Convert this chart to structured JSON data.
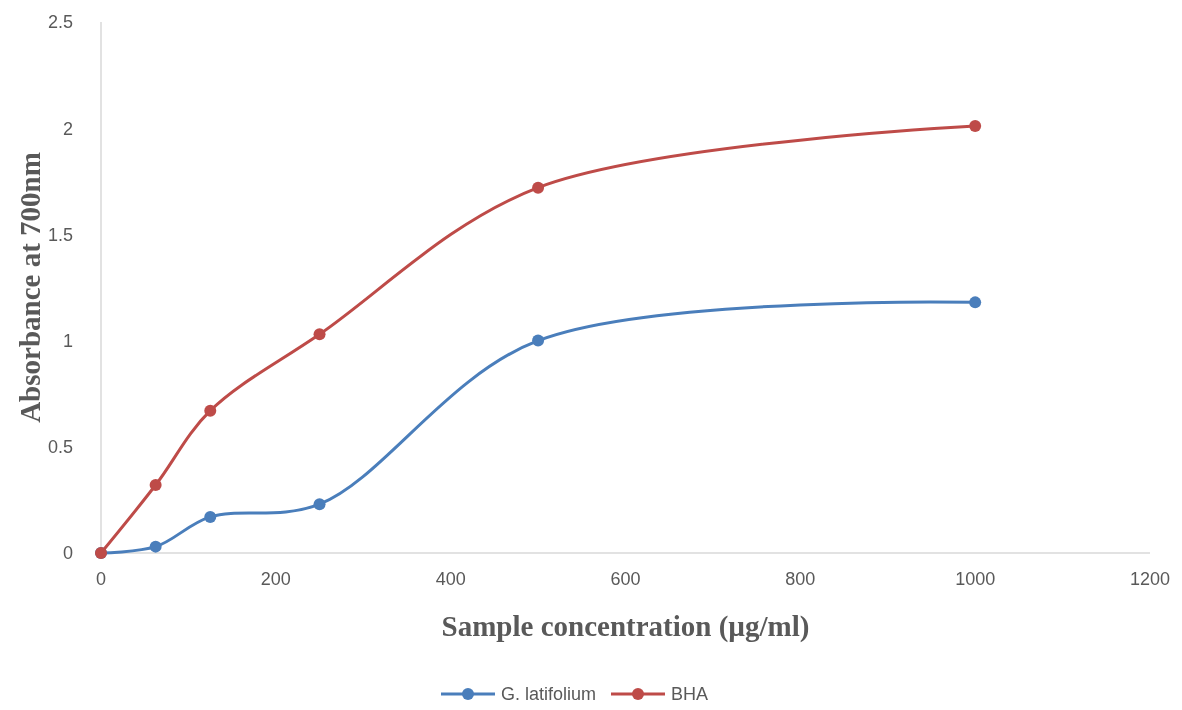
{
  "chart_data": {
    "type": "line",
    "xlabel": "Sample concentration (µg/ml)",
    "ylabel": "Absorbance at 700nm",
    "x": [
      0,
      62.5,
      125,
      250,
      500,
      1000
    ],
    "series": [
      {
        "name": "G. latifolium",
        "color": "#4a7ebb",
        "values": [
          0,
          0.03,
          0.17,
          0.23,
          1.0,
          1.18
        ]
      },
      {
        "name": "BHA",
        "color": "#be4b48",
        "values": [
          0,
          0.32,
          0.67,
          1.03,
          1.72,
          2.01
        ]
      }
    ],
    "xlim": [
      0,
      1200
    ],
    "xticks": [
      0,
      200,
      400,
      600,
      800,
      1000,
      1200
    ],
    "ylim": [
      0,
      2.5
    ],
    "yticks": [
      0,
      0.5,
      1,
      1.5,
      2,
      2.5
    ],
    "grid": false,
    "legend": "bottom",
    "marker": "circle",
    "line_style": "solid"
  }
}
